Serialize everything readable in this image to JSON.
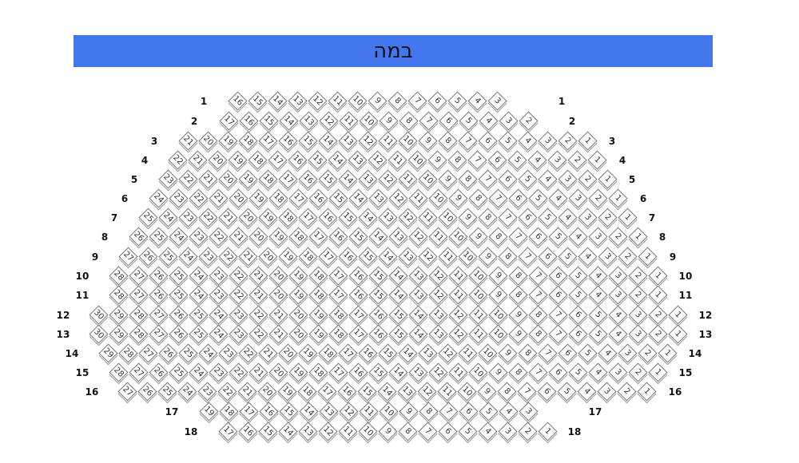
{
  "stage": {
    "label": "במה",
    "color": "#4477ED"
  },
  "rows": [
    {
      "label": "1",
      "seat_from": 16,
      "seat_to": 3
    },
    {
      "label": "2",
      "seat_from": 17,
      "seat_to": 2
    },
    {
      "label": "3",
      "seat_from": 21,
      "seat_to": 1
    },
    {
      "label": "4",
      "seat_from": 22,
      "seat_to": 1
    },
    {
      "label": "5",
      "seat_from": 23,
      "seat_to": 1
    },
    {
      "label": "6",
      "seat_from": 24,
      "seat_to": 1
    },
    {
      "label": "7",
      "seat_from": 25,
      "seat_to": 1
    },
    {
      "label": "8",
      "seat_from": 26,
      "seat_to": 1
    },
    {
      "label": "9",
      "seat_from": 27,
      "seat_to": 1
    },
    {
      "label": "10",
      "seat_from": 28,
      "seat_to": 1
    },
    {
      "label": "11",
      "seat_from": 28,
      "seat_to": 1
    },
    {
      "label": "12",
      "seat_from": 30,
      "seat_to": 1
    },
    {
      "label": "13",
      "seat_from": 30,
      "seat_to": 1
    },
    {
      "label": "14",
      "seat_from": 29,
      "seat_to": 1
    },
    {
      "label": "15",
      "seat_from": 28,
      "seat_to": 1
    },
    {
      "label": "16",
      "seat_from": 27,
      "seat_to": 1
    },
    {
      "label": "17",
      "seat_from": 19,
      "seat_to": 3
    },
    {
      "label": "18",
      "seat_from": 17,
      "seat_to": 1
    }
  ]
}
